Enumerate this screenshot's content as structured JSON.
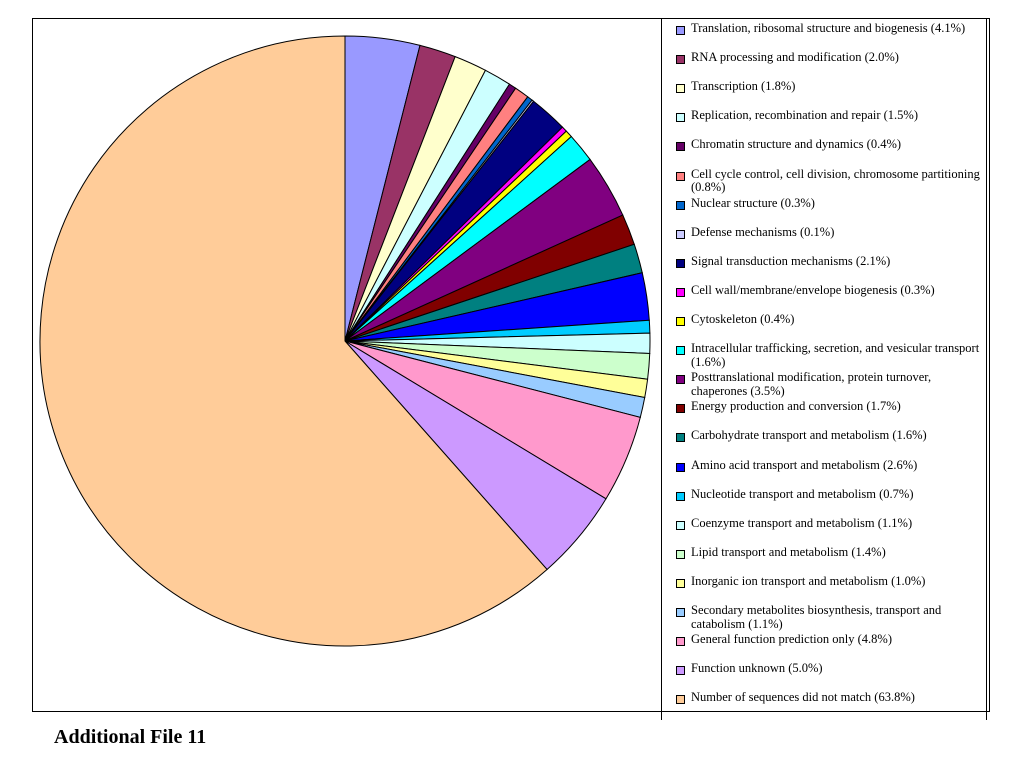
{
  "chart_data": {
    "type": "pie",
    "title": "",
    "start_angle_deg": 0,
    "direction": "clockwise",
    "slices": [
      {
        "label": "Translation, ribosomal structure and biogenesis (4.1%)",
        "value": 4.1,
        "color": "#9999ff"
      },
      {
        "label": "RNA processing and modification (2.0%)",
        "value": 2.0,
        "color": "#993366"
      },
      {
        "label": "Transcription (1.8%)",
        "value": 1.8,
        "color": "#ffffcc"
      },
      {
        "label": "Replication, recombination and repair (1.5%)",
        "value": 1.5,
        "color": "#ccffff"
      },
      {
        "label": "Chromatin structure and dynamics (0.4%)",
        "value": 0.4,
        "color": "#660066"
      },
      {
        "label": "Cell cycle control, cell division, chromosome partitioning (0.8%)",
        "value": 0.8,
        "color": "#ff8080"
      },
      {
        "label": "Nuclear structure (0.3%)",
        "value": 0.3,
        "color": "#0066cc"
      },
      {
        "label": "Defense mechanisms (0.1%)",
        "value": 0.1,
        "color": "#ccccff"
      },
      {
        "label": "Signal transduction mechanisms (2.1%)",
        "value": 2.1,
        "color": "#000080"
      },
      {
        "label": "Cell wall/membrane/envelope biogenesis (0.3%)",
        "value": 0.3,
        "color": "#ff00ff"
      },
      {
        "label": "Cytoskeleton (0.4%)",
        "value": 0.4,
        "color": "#ffff00"
      },
      {
        "label": "Intracellular trafficking, secretion, and vesicular transport (1.6%)",
        "value": 1.6,
        "color": "#00ffff"
      },
      {
        "label": "Posttranslational modification, protein turnover, chaperones (3.5%)",
        "value": 3.5,
        "color": "#800080"
      },
      {
        "label": "Energy production and conversion (1.7%)",
        "value": 1.7,
        "color": "#800000"
      },
      {
        "label": "Carbohydrate transport and metabolism (1.6%)",
        "value": 1.6,
        "color": "#008080"
      },
      {
        "label": "Amino acid transport and metabolism (2.6%)",
        "value": 2.6,
        "color": "#0000ff"
      },
      {
        "label": "Nucleotide transport and metabolism (0.7%)",
        "value": 0.7,
        "color": "#00ccff"
      },
      {
        "label": "Coenzyme transport and metabolism (1.1%)",
        "value": 1.1,
        "color": "#ccffff"
      },
      {
        "label": "Lipid transport and metabolism (1.4%)",
        "value": 1.4,
        "color": "#ccffcc"
      },
      {
        "label": "Inorganic ion transport and metabolism (1.0%)",
        "value": 1.0,
        "color": "#ffff99"
      },
      {
        "label": "Secondary metabolites biosynthesis, transport and catabolism (1.1%)",
        "value": 1.1,
        "color": "#99ccff"
      },
      {
        "label": "General function prediction only (4.8%)",
        "value": 4.8,
        "color": "#ff99cc"
      },
      {
        "label": "Function unknown (5.0%)",
        "value": 5.0,
        "color": "#cc99ff"
      },
      {
        "label": "Number of sequences did not match (63.8%)",
        "value": 63.8,
        "color": "#ffcc99"
      }
    ],
    "legend_position": "right"
  },
  "footer": {
    "caption": "Additional File 11"
  }
}
